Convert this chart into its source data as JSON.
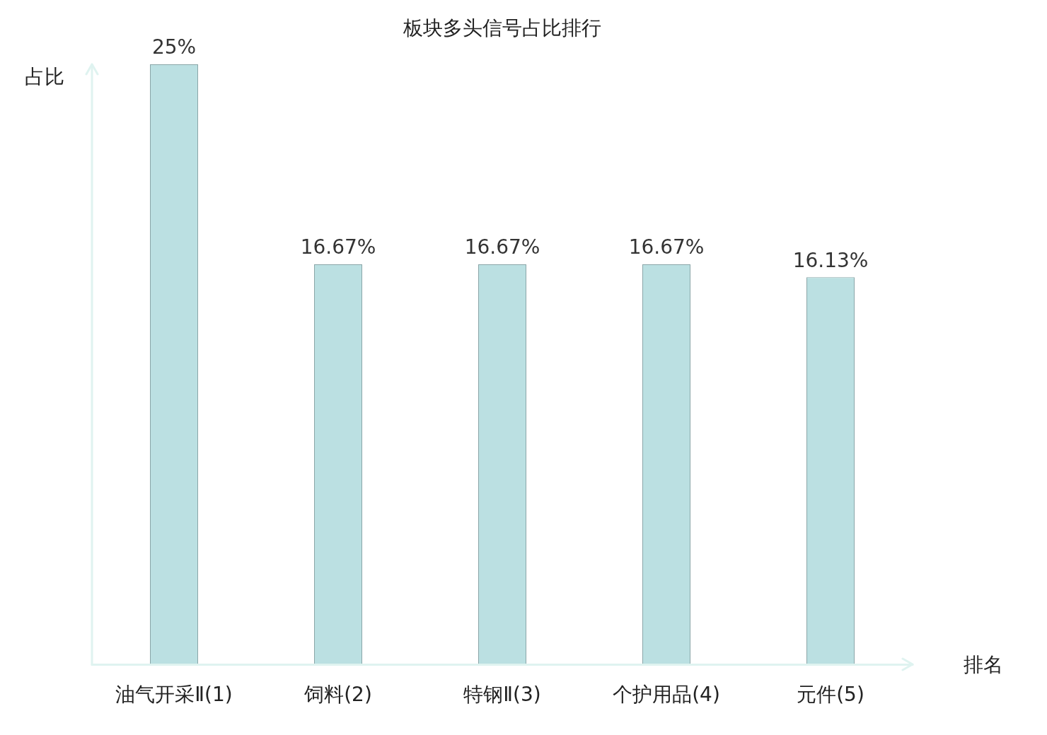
{
  "chart_data": {
    "type": "bar",
    "title": "板块多头信号占比排行",
    "xlabel": "排名",
    "ylabel": "占比",
    "categories": [
      "油气开采Ⅱ(1)",
      "饲料(2)",
      "特钢Ⅱ(3)",
      "个护用品(4)",
      "元件(5)"
    ],
    "values": [
      25,
      16.67,
      16.67,
      16.67,
      16.13
    ],
    "value_labels": [
      "25%",
      "16.67%",
      "16.67%",
      "16.67%",
      "16.13%"
    ],
    "color": "#bbe0e2",
    "ylim": [
      0,
      25
    ],
    "tick_labels": "x",
    "grid": false,
    "legend": false
  }
}
